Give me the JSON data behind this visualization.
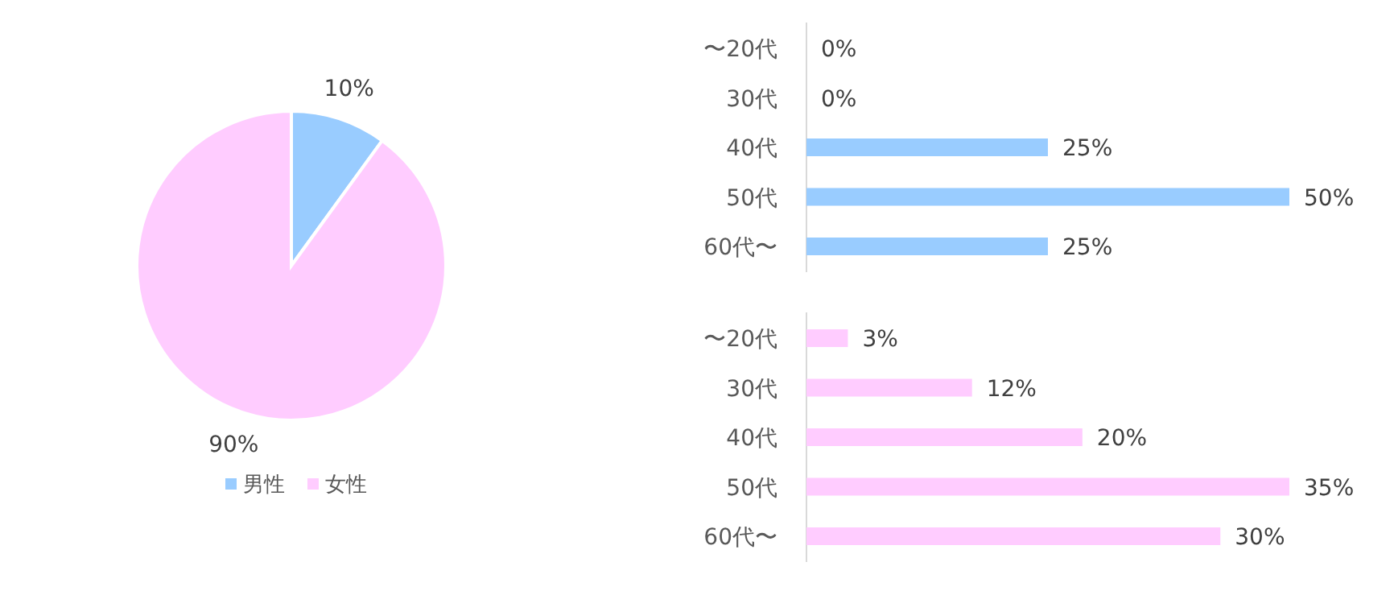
{
  "chart_data": [
    {
      "type": "pie",
      "categories": [
        "男性",
        "女性"
      ],
      "values": [
        10,
        90
      ],
      "colors": [
        "#99ccff",
        "#ffccff"
      ],
      "value_labels": [
        "10%",
        "90%"
      ],
      "legend": "bottom"
    },
    {
      "type": "bar",
      "orientation": "horizontal",
      "categories": [
        "〜20代",
        "30代",
        "40代",
        "50代",
        "60代〜"
      ],
      "values": [
        0,
        0,
        25,
        50,
        25
      ],
      "color": "#99ccff",
      "value_labels": [
        "0%",
        "0%",
        "25%",
        "50%",
        "25%"
      ]
    },
    {
      "type": "bar",
      "orientation": "horizontal",
      "categories": [
        "〜20代",
        "30代",
        "40代",
        "50代",
        "60代〜"
      ],
      "values": [
        3,
        12,
        20,
        35,
        30
      ],
      "color": "#ffccff",
      "value_labels": [
        "3%",
        "12%",
        "20%",
        "35%",
        "30%"
      ]
    }
  ]
}
